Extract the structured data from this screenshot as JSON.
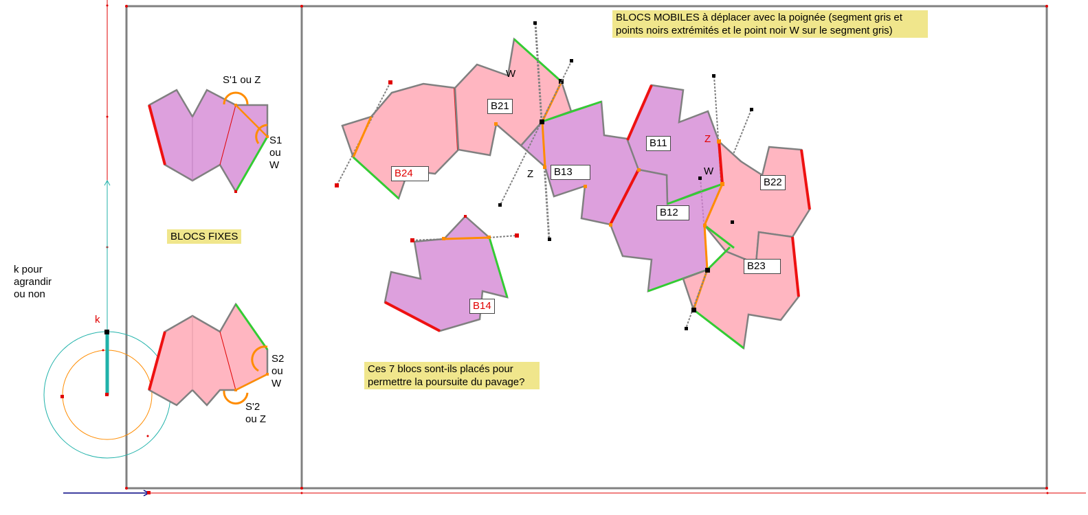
{
  "notes": {
    "mobile_blocks": "BLOCS MOBILES à déplacer avec la poignée (segment gris et points noirs extrémités et le point noir W sur le segment gris)",
    "fixed_blocks": "BLOCS FIXES",
    "question": "Ces 7 blocs sont-ils placés pour permettre la poursuite du pavage?",
    "k_hint": "k pour agrandir ou non"
  },
  "slider": {
    "label": "k"
  },
  "fixed": {
    "top_s1z": "S'1 ou Z",
    "top_s1w": "S1 ou W",
    "bottom_s2w": "S2 ou W",
    "bottom_s2z": "S'2 ou Z"
  },
  "blocks": {
    "b24": "B24",
    "b21": "B21",
    "b13": "B13",
    "b11": "B11",
    "b22": "B22",
    "b12": "B12",
    "b23": "B23",
    "b14": "B14"
  },
  "points": {
    "w1": "W",
    "z1": "Z",
    "z2": "Z",
    "w2": "W"
  },
  "colors": {
    "pink": "#ffb6c1",
    "purple": "#dda0dd",
    "edge": "#808080",
    "red": "#ee1111",
    "green": "#33cc33",
    "orange": "#ff8c00",
    "note": "#f0e68c",
    "teal": "#20b2aa",
    "frame": "#808080"
  }
}
